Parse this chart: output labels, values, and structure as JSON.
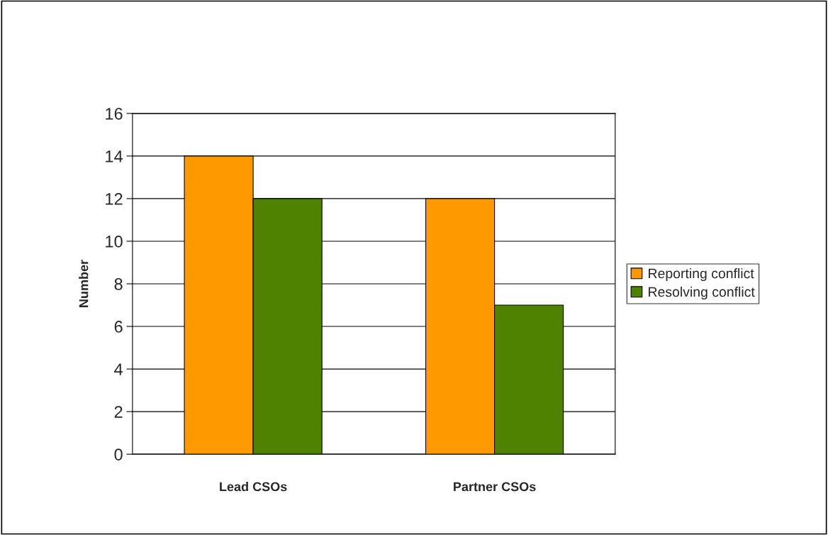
{
  "chart_data": {
    "type": "bar",
    "ylabel": "Number",
    "categories": [
      "Lead CSOs",
      "Partner CSOs"
    ],
    "series": [
      {
        "name": "Reporting conflict",
        "color": "#ff9900",
        "values": [
          14,
          12
        ]
      },
      {
        "name": "Resolving conflict",
        "color": "#4f8200",
        "values": [
          12,
          7
        ]
      }
    ],
    "ylim": [
      0,
      16
    ],
    "yticks": [
      0,
      2,
      4,
      6,
      8,
      10,
      12,
      14,
      16
    ],
    "grid": "y",
    "legend": "right"
  }
}
